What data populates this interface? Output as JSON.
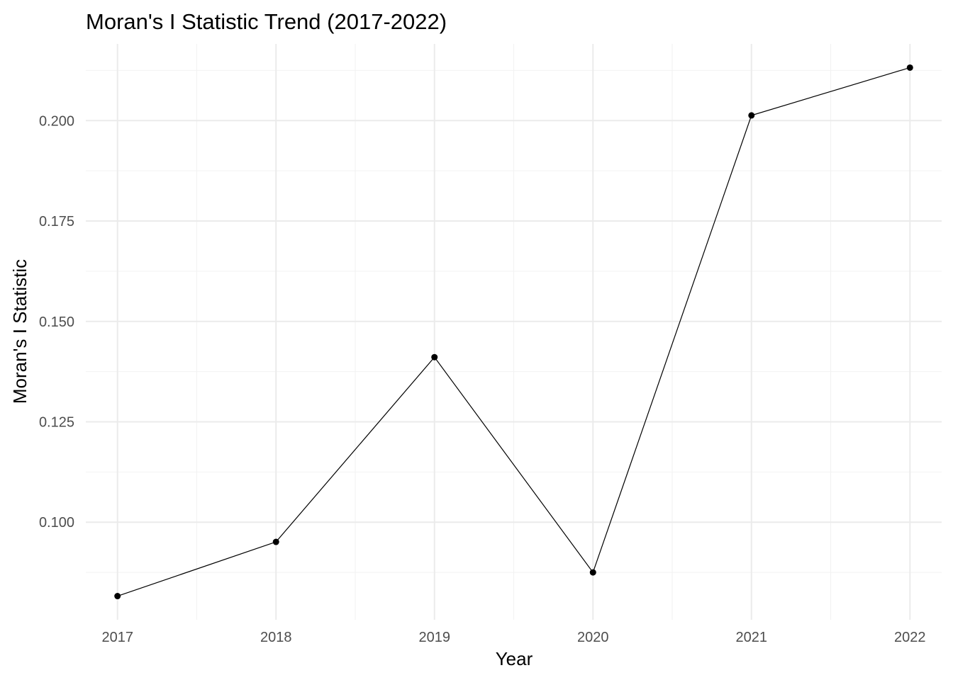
{
  "chart_data": {
    "type": "line",
    "title": "Moran's I Statistic Trend (2017-2022)",
    "xlabel": "Year",
    "ylabel": "Moran's I Statistic",
    "x": [
      2017,
      2018,
      2019,
      2020,
      2021,
      2022
    ],
    "x_tick_labels": [
      "2017",
      "2018",
      "2019",
      "2020",
      "2021",
      "2022"
    ],
    "y_tick_values": [
      0.1,
      0.125,
      0.15,
      0.175,
      0.2
    ],
    "y_tick_labels": [
      "0.100",
      "0.125",
      "0.150",
      "0.175",
      "0.200"
    ],
    "series": [
      {
        "values": [
          0.0816,
          0.0951,
          0.1411,
          0.0875,
          0.2013,
          0.2132
        ]
      }
    ],
    "xlim": [
      2016.8,
      2022.2
    ],
    "ylim": [
      0.0757,
      0.2191
    ],
    "grid": true,
    "legend": "none",
    "colors": {
      "line": "#000000",
      "point": "#000000",
      "grid": "#ebebeb",
      "tick_text": "#4d4d4d"
    }
  }
}
